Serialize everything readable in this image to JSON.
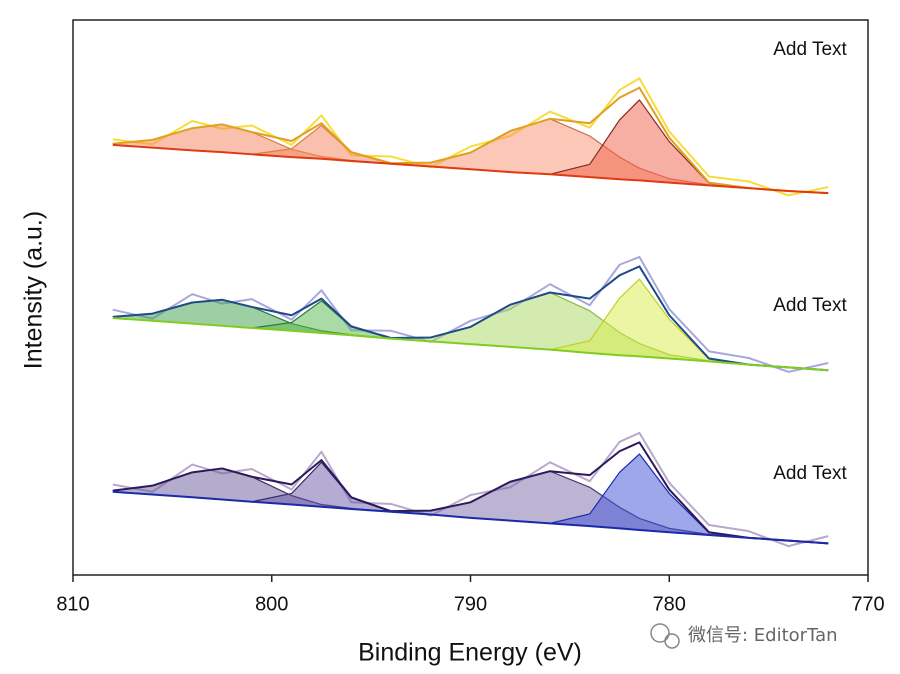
{
  "chart_data": {
    "type": "line",
    "xlabel": "Binding Energy (eV)",
    "ylabel": "Intensity (a.u.)",
    "xlim": [
      810,
      770
    ],
    "xticks": [
      810,
      800,
      790,
      780,
      770
    ],
    "ylim": [
      0,
      100
    ],
    "grid": false,
    "annotations": [
      "Add Text",
      "Add Text",
      "Add Text"
    ],
    "watermark": "微信号: EditorTan",
    "x": [
      808,
      806,
      804,
      802.5,
      801,
      799,
      797.5,
      796,
      794,
      792,
      790,
      788,
      786,
      784,
      782.5,
      781.5,
      780,
      778,
      776,
      774,
      772
    ],
    "series": [
      {
        "color": "#f7dc3c",
        "values": [
          78.5,
          77.6,
          81.8,
          80.4,
          81.0,
          77.5,
          82.8,
          75.6,
          75.4,
          73.5,
          77.2,
          79.1,
          83.5,
          80.6,
          87.4,
          89.5,
          79.9,
          71.8,
          70.9,
          68.4,
          69.9
        ]
      },
      {
        "color": "#e07a40",
        "fill": "#f4845c",
        "values": [
          77.7,
          78.4,
          80.5,
          81.2,
          79.8,
          76.7,
          75.4,
          74.7,
          74.1,
          null,
          null,
          null,
          null,
          null,
          null,
          null,
          null,
          null,
          null,
          null,
          null
        ]
      },
      {
        "color": "#e07a40",
        "fill": "#f4845c",
        "values": [
          null,
          null,
          null,
          null,
          75.8,
          76.8,
          81.0,
          76.1,
          74.1,
          null,
          null,
          null,
          null,
          null,
          null,
          null,
          null,
          null,
          null,
          null,
          null
        ]
      },
      {
        "color": "#d06a50",
        "fill": "#f79070",
        "values": [
          null,
          null,
          null,
          null,
          null,
          null,
          null,
          74.6,
          74.2,
          74.3,
          76.1,
          80.0,
          82.2,
          79.1,
          75.3,
          73.3,
          71.4,
          70.3,
          69.7,
          null,
          null
        ]
      },
      {
        "color": "#8a2a20",
        "fill": "#f26048",
        "values": [
          null,
          null,
          null,
          null,
          null,
          null,
          null,
          null,
          null,
          null,
          null,
          72.6,
          72.2,
          74.0,
          82.0,
          85.6,
          78.1,
          70.6,
          69.7,
          null,
          null
        ]
      },
      {
        "color": "#e0a020",
        "values": [
          77.7,
          78.4,
          80.5,
          81.2,
          79.8,
          78.2,
          81.4,
          76.2,
          74.2,
          74.3,
          76.1,
          80.0,
          82.2,
          81.4,
          86.0,
          87.8,
          78.8,
          70.7,
          69.7,
          69.2,
          68.8
        ]
      },
      {
        "color": "#e03a10",
        "values": [
          77.5,
          77.0,
          76.5,
          76.2,
          75.8,
          75.3,
          75.0,
          74.6,
          74.1,
          73.6,
          73.1,
          72.6,
          72.2,
          71.7,
          71.3,
          71.1,
          70.7,
          70.2,
          69.7,
          69.2,
          68.8
        ]
      },
      {
        "color": "#a8a8dc",
        "values": [
          47.8,
          46.2,
          50.6,
          48.9,
          49.7,
          46.0,
          51.3,
          44.1,
          44.0,
          42.0,
          45.8,
          47.9,
          52.4,
          48.6,
          55.9,
          57.3,
          47.9,
          40.3,
          39.1,
          36.6,
          38.2
        ]
      },
      {
        "color": "#2e7a3a",
        "fill": "#3ea04a",
        "values": [
          46.5,
          47.1,
          49.1,
          49.6,
          48.3,
          45.3,
          44.0,
          43.3,
          42.6,
          null,
          null,
          null,
          null,
          null,
          null,
          null,
          null,
          null,
          null,
          null,
          null
        ]
      },
      {
        "color": "#2e7a3a",
        "fill": "#58b84a",
        "values": [
          null,
          null,
          null,
          null,
          44.5,
          45.5,
          49.4,
          44.7,
          42.6,
          null,
          null,
          null,
          null,
          null,
          null,
          null,
          null,
          null,
          null,
          null,
          null
        ]
      },
      {
        "color": "#8ab840",
        "fill": "#a8d860",
        "values": [
          null,
          null,
          null,
          null,
          null,
          null,
          null,
          43.2,
          42.7,
          42.8,
          44.7,
          48.7,
          50.9,
          47.6,
          43.7,
          41.7,
          39.7,
          38.6,
          37.9,
          null,
          null
        ]
      },
      {
        "color": "#c0d020",
        "fill": "#d8ec48",
        "values": [
          null,
          null,
          null,
          null,
          null,
          null,
          null,
          null,
          null,
          null,
          null,
          41.1,
          40.6,
          42.2,
          49.9,
          53.3,
          46.1,
          38.9,
          37.9,
          null,
          null
        ]
      },
      {
        "color": "#1e4a8a",
        "values": [
          46.5,
          47.1,
          49.1,
          49.6,
          48.3,
          46.8,
          49.8,
          44.8,
          42.7,
          42.8,
          44.7,
          48.7,
          50.9,
          49.8,
          54.0,
          55.6,
          46.8,
          39.0,
          37.9,
          37.4,
          36.9
        ]
      },
      {
        "color": "#80cc20",
        "values": [
          46.3,
          45.8,
          45.3,
          44.9,
          44.5,
          44.0,
          43.6,
          43.2,
          42.6,
          42.1,
          41.6,
          41.1,
          40.6,
          40.0,
          39.6,
          39.4,
          39.0,
          38.5,
          37.9,
          37.4,
          36.9
        ]
      },
      {
        "color": "#b8a8cc",
        "values": [
          16.3,
          15.0,
          19.9,
          18.3,
          19.1,
          15.4,
          22.2,
          13.1,
          12.8,
          10.7,
          14.4,
          15.8,
          20.3,
          16.9,
          24.0,
          25.6,
          16.6,
          9.0,
          7.9,
          5.2,
          7.0
        ]
      },
      {
        "color": "#3a2a6a",
        "fill": "#6a5a9a",
        "values": [
          15.2,
          16.1,
          18.5,
          19.2,
          17.7,
          14.3,
          12.7,
          12.0,
          11.4,
          null,
          null,
          null,
          null,
          null,
          null,
          null,
          null,
          null,
          null,
          null,
          null
        ]
      },
      {
        "color": "#3a2a6a",
        "fill": "#6a5aa8",
        "values": [
          null,
          null,
          null,
          null,
          13.2,
          14.7,
          20.3,
          13.9,
          11.4,
          null,
          null,
          null,
          null,
          null,
          null,
          null,
          null,
          null,
          null,
          null,
          null
        ]
      },
      {
        "color": "#4a3a7a",
        "fill": "#7a6aa8",
        "values": [
          null,
          null,
          null,
          null,
          null,
          null,
          null,
          11.9,
          11.5,
          11.6,
          13.1,
          16.8,
          18.7,
          15.8,
          12.2,
          10.2,
          8.4,
          7.3,
          6.7,
          null,
          null
        ]
      },
      {
        "color": "#1a2ab0",
        "fill": "#4050d8",
        "values": [
          null,
          null,
          null,
          null,
          null,
          null,
          null,
          null,
          null,
          null,
          null,
          9.8,
          9.3,
          11.0,
          18.5,
          21.8,
          14.7,
          7.6,
          6.7,
          null,
          null
        ]
      },
      {
        "color": "#2a1a5a",
        "values": [
          15.2,
          16.1,
          18.5,
          19.2,
          17.7,
          16.3,
          20.7,
          14.0,
          11.5,
          11.6,
          13.1,
          16.8,
          18.7,
          18.0,
          22.3,
          23.9,
          15.4,
          7.7,
          6.7,
          6.2,
          5.7
        ]
      },
      {
        "color": "#1a2aa8",
        "values": [
          15.0,
          14.5,
          14.0,
          13.6,
          13.2,
          12.7,
          12.3,
          11.9,
          11.4,
          10.9,
          10.3,
          9.8,
          9.3,
          8.8,
          8.4,
          8.1,
          7.7,
          7.2,
          6.7,
          6.2,
          5.7
        ]
      }
    ]
  }
}
